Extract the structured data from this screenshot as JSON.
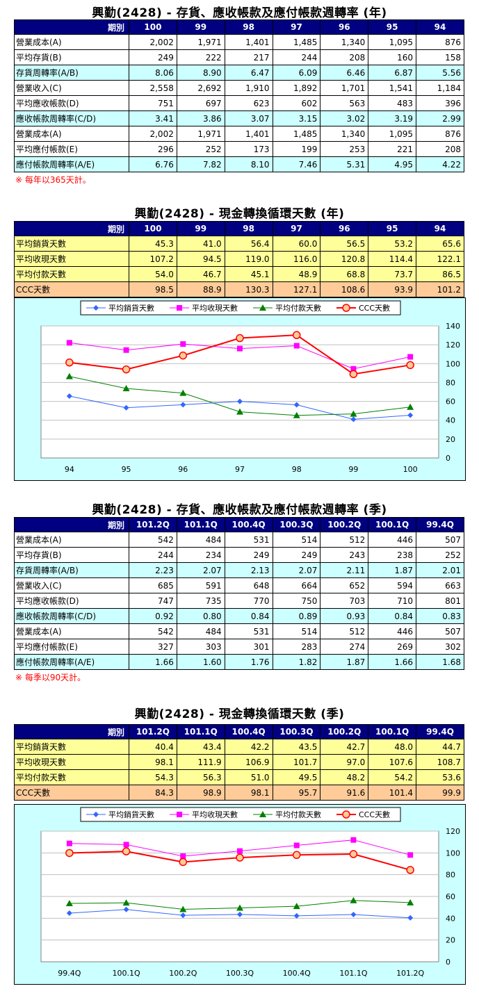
{
  "sections": [
    {
      "title": "興勤(2428) - 存貨、應收帳款及應付帳款週轉率 (年)",
      "header_label": "期別",
      "periods": [
        "100",
        "99",
        "98",
        "97",
        "96",
        "95",
        "94"
      ],
      "rows": [
        {
          "label": "營業成本(A)",
          "values": [
            "2,002",
            "1,971",
            "1,401",
            "1,485",
            "1,340",
            "1,095",
            "876"
          ],
          "style": "white"
        },
        {
          "label": "平均存貨(B)",
          "values": [
            "249",
            "222",
            "217",
            "244",
            "208",
            "160",
            "158"
          ],
          "style": "white"
        },
        {
          "label": "存貨周轉率(A/B)",
          "values": [
            "8.06",
            "8.90",
            "6.47",
            "6.09",
            "6.46",
            "6.87",
            "5.56"
          ],
          "style": "cyan"
        },
        {
          "label": "營業收入(C)",
          "values": [
            "2,558",
            "2,692",
            "1,910",
            "1,892",
            "1,701",
            "1,541",
            "1,184"
          ],
          "style": "white"
        },
        {
          "label": "平均應收帳款(D)",
          "values": [
            "751",
            "697",
            "623",
            "602",
            "563",
            "483",
            "396"
          ],
          "style": "white"
        },
        {
          "label": "應收帳款周轉率(C/D)",
          "values": [
            "3.41",
            "3.86",
            "3.07",
            "3.15",
            "3.02",
            "3.19",
            "2.99"
          ],
          "style": "cyan"
        },
        {
          "label": "營業成本(A)",
          "values": [
            "2,002",
            "1,971",
            "1,401",
            "1,485",
            "1,340",
            "1,095",
            "876"
          ],
          "style": "white"
        },
        {
          "label": "平均應付帳款(E)",
          "values": [
            "296",
            "252",
            "173",
            "199",
            "253",
            "221",
            "208"
          ],
          "style": "white"
        },
        {
          "label": "應付帳款周轉率(A/E)",
          "values": [
            "6.76",
            "7.82",
            "8.10",
            "7.46",
            "5.31",
            "4.95",
            "4.22"
          ],
          "style": "cyan"
        }
      ],
      "note": "※ 每年以365天計。"
    },
    {
      "title": "興勤(2428) - 現金轉換循環天數 (年)",
      "header_label": "期別",
      "periods": [
        "100",
        "99",
        "98",
        "97",
        "96",
        "95",
        "94"
      ],
      "rows": [
        {
          "label": "平均銷貨天數",
          "values": [
            "45.3",
            "41.0",
            "56.4",
            "60.0",
            "56.5",
            "53.2",
            "65.6"
          ],
          "style": "yellow"
        },
        {
          "label": "平均收現天數",
          "values": [
            "107.2",
            "94.5",
            "119.0",
            "116.0",
            "120.8",
            "114.4",
            "122.1"
          ],
          "style": "yellow"
        },
        {
          "label": "平均付款天數",
          "values": [
            "54.0",
            "46.7",
            "45.1",
            "48.9",
            "68.8",
            "73.7",
            "86.5"
          ],
          "style": "yellow"
        },
        {
          "label": "CCC天數",
          "values": [
            "98.5",
            "88.9",
            "130.3",
            "127.1",
            "108.6",
            "93.9",
            "101.2"
          ],
          "style": "orange"
        }
      ]
    },
    {
      "title": "興勤(2428) - 存貨、應收帳款及應付帳款週轉率 (季)",
      "header_label": "期別",
      "periods": [
        "101.2Q",
        "101.1Q",
        "100.4Q",
        "100.3Q",
        "100.2Q",
        "100.1Q",
        "99.4Q"
      ],
      "rows": [
        {
          "label": "營業成本(A)",
          "values": [
            "542",
            "484",
            "531",
            "514",
            "512",
            "446",
            "507"
          ],
          "style": "white"
        },
        {
          "label": "平均存貨(B)",
          "values": [
            "244",
            "234",
            "249",
            "249",
            "243",
            "238",
            "252"
          ],
          "style": "white"
        },
        {
          "label": "存貨周轉率(A/B)",
          "values": [
            "2.23",
            "2.07",
            "2.13",
            "2.07",
            "2.11",
            "1.87",
            "2.01"
          ],
          "style": "cyan"
        },
        {
          "label": "營業收入(C)",
          "values": [
            "685",
            "591",
            "648",
            "664",
            "652",
            "594",
            "663"
          ],
          "style": "white"
        },
        {
          "label": "平均應收帳款(D)",
          "values": [
            "747",
            "735",
            "770",
            "750",
            "703",
            "710",
            "801"
          ],
          "style": "white"
        },
        {
          "label": "應收帳款周轉率(C/D)",
          "values": [
            "0.92",
            "0.80",
            "0.84",
            "0.89",
            "0.93",
            "0.84",
            "0.83"
          ],
          "style": "cyan"
        },
        {
          "label": "營業成本(A)",
          "values": [
            "542",
            "484",
            "531",
            "514",
            "512",
            "446",
            "507"
          ],
          "style": "white"
        },
        {
          "label": "平均應付帳款(E)",
          "values": [
            "327",
            "303",
            "301",
            "283",
            "274",
            "269",
            "302"
          ],
          "style": "white"
        },
        {
          "label": "應付帳款周轉率(A/E)",
          "values": [
            "1.66",
            "1.60",
            "1.76",
            "1.82",
            "1.87",
            "1.66",
            "1.68"
          ],
          "style": "cyan"
        }
      ],
      "note": "※ 每季以90天計。"
    },
    {
      "title": "興勤(2428) - 現金轉換循環天數 (季)",
      "header_label": "期別",
      "periods": [
        "101.2Q",
        "101.1Q",
        "100.4Q",
        "100.3Q",
        "100.2Q",
        "100.1Q",
        "99.4Q"
      ],
      "rows": [
        {
          "label": "平均銷貨天數",
          "values": [
            "40.4",
            "43.4",
            "42.2",
            "43.5",
            "42.7",
            "48.0",
            "44.7"
          ],
          "style": "yellow"
        },
        {
          "label": "平均收現天數",
          "values": [
            "98.1",
            "111.9",
            "106.9",
            "101.7",
            "97.0",
            "107.6",
            "108.7"
          ],
          "style": "yellow"
        },
        {
          "label": "平均付款天數",
          "values": [
            "54.3",
            "56.3",
            "51.0",
            "49.5",
            "48.2",
            "54.2",
            "53.6"
          ],
          "style": "yellow"
        },
        {
          "label": "CCC天數",
          "values": [
            "84.3",
            "98.9",
            "98.1",
            "95.7",
            "91.6",
            "101.4",
            "99.9"
          ],
          "style": "orange"
        }
      ]
    }
  ],
  "chart_data": [
    {
      "type": "line",
      "categories": [
        "94",
        "95",
        "96",
        "97",
        "98",
        "99",
        "100"
      ],
      "ylim": [
        0,
        140
      ],
      "yticks": [
        0,
        20,
        40,
        60,
        80,
        100,
        120,
        140
      ],
      "grid": true,
      "legend": "top",
      "series": [
        {
          "name": "平均銷貨天數",
          "color": "#3366ff",
          "marker": "diamond",
          "values": [
            65.6,
            53.2,
            56.5,
            60.0,
            56.4,
            41.0,
            45.3
          ]
        },
        {
          "name": "平均收現天數",
          "color": "#ff00ff",
          "marker": "square",
          "values": [
            122.1,
            114.4,
            120.8,
            116.0,
            119.0,
            94.5,
            107.2
          ]
        },
        {
          "name": "平均付款天數",
          "color": "#008000",
          "marker": "triangle",
          "values": [
            86.5,
            73.7,
            68.8,
            48.9,
            45.1,
            46.7,
            54.0
          ]
        },
        {
          "name": "CCC天數",
          "color": "#ff0000",
          "marker": "circle",
          "values": [
            101.2,
            93.9,
            108.6,
            127.1,
            130.3,
            88.9,
            98.5
          ]
        }
      ]
    },
    {
      "type": "line",
      "categories": [
        "99.4Q",
        "100.1Q",
        "100.2Q",
        "100.3Q",
        "100.4Q",
        "101.1Q",
        "101.2Q"
      ],
      "ylim": [
        0,
        120
      ],
      "yticks": [
        0,
        20,
        40,
        60,
        80,
        100,
        120
      ],
      "grid": true,
      "legend": "top",
      "series": [
        {
          "name": "平均銷貨天數",
          "color": "#3366ff",
          "marker": "diamond",
          "values": [
            44.7,
            48.0,
            42.7,
            43.5,
            42.2,
            43.4,
            40.4
          ]
        },
        {
          "name": "平均收現天數",
          "color": "#ff00ff",
          "marker": "square",
          "values": [
            108.7,
            107.6,
            97.0,
            101.7,
            106.9,
            111.9,
            98.1
          ]
        },
        {
          "name": "平均付款天數",
          "color": "#008000",
          "marker": "triangle",
          "values": [
            53.6,
            54.2,
            48.2,
            49.5,
            51.0,
            56.3,
            54.3
          ]
        },
        {
          "name": "CCC天數",
          "color": "#ff0000",
          "marker": "circle",
          "values": [
            99.9,
            101.4,
            91.6,
            95.7,
            98.1,
            98.9,
            84.3
          ]
        }
      ]
    }
  ]
}
